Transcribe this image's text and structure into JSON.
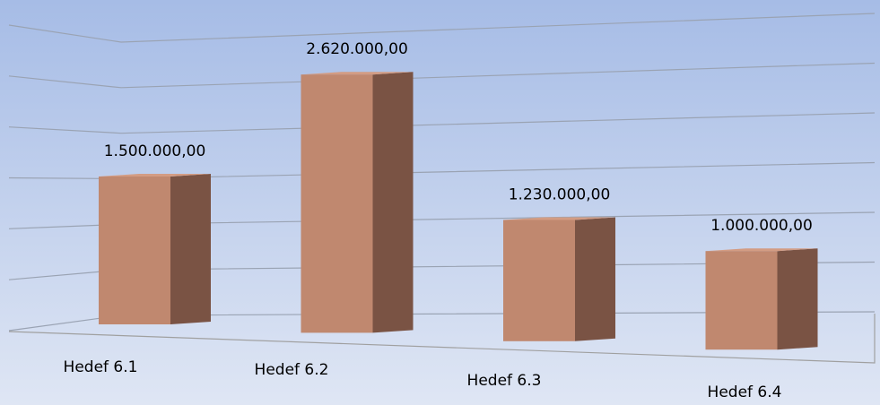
{
  "chart_data": {
    "type": "bar3d",
    "categories": [
      "Hedef 6.1",
      "Hedef 6.2",
      "Hedef 6.3",
      "Hedef 6.4"
    ],
    "values": [
      1500000,
      2620000,
      1230000,
      1000000
    ],
    "value_labels": [
      "1.500.000,00",
      "2.620.000,00",
      "1.230.000,00",
      "1.000.000,00"
    ],
    "color": "#c0886f",
    "ylim": [
      0,
      3000000
    ],
    "yticks": [
      0,
      500000,
      1000000,
      1500000,
      2000000,
      2500000,
      3000000
    ],
    "grid": true
  }
}
